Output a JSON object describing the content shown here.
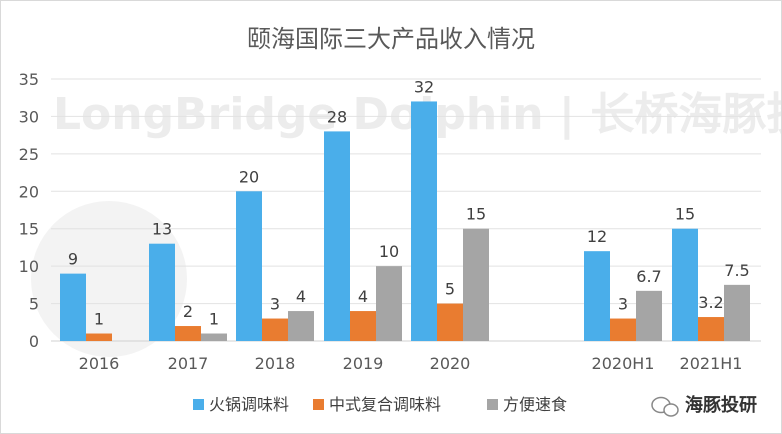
{
  "chart_data": {
    "type": "bar",
    "title": "颐海国际三大产品收入情况",
    "categories": [
      "2016",
      "2017",
      "2018",
      "2019",
      "2020",
      "2020H1",
      "2021H1"
    ],
    "series": [
      {
        "name": "火锅调味料",
        "values": [
          9,
          13,
          20,
          28,
          32,
          12,
          15
        ],
        "labels": [
          "9",
          "13",
          "20",
          "28",
          "32",
          "12",
          "15"
        ],
        "color": "#4aaeea"
      },
      {
        "name": "中式复合调味料",
        "values": [
          1,
          2,
          3,
          4,
          5,
          3,
          3.2
        ],
        "labels": [
          "1",
          "2",
          "3",
          "4",
          "5",
          "3",
          "3.2"
        ],
        "color": "#e97c30"
      },
      {
        "name": "方便速食",
        "values": [
          null,
          1,
          4,
          10,
          15,
          6.7,
          7.5
        ],
        "labels": [
          "",
          "1",
          "4",
          "10",
          "15",
          "6.7",
          "7.5"
        ],
        "color": "#a5a5a5"
      }
    ],
    "yticks": [
      "0",
      "5",
      "10",
      "15",
      "20",
      "25",
      "30",
      "35"
    ],
    "ylim": [
      0,
      35
    ],
    "xlabel": "",
    "ylabel": "",
    "grid": true,
    "legend": "bottom"
  },
  "watermark": "LongBridge Dolphin | 长桥海豚投研",
  "logo": {
    "text": "海豚投研"
  }
}
